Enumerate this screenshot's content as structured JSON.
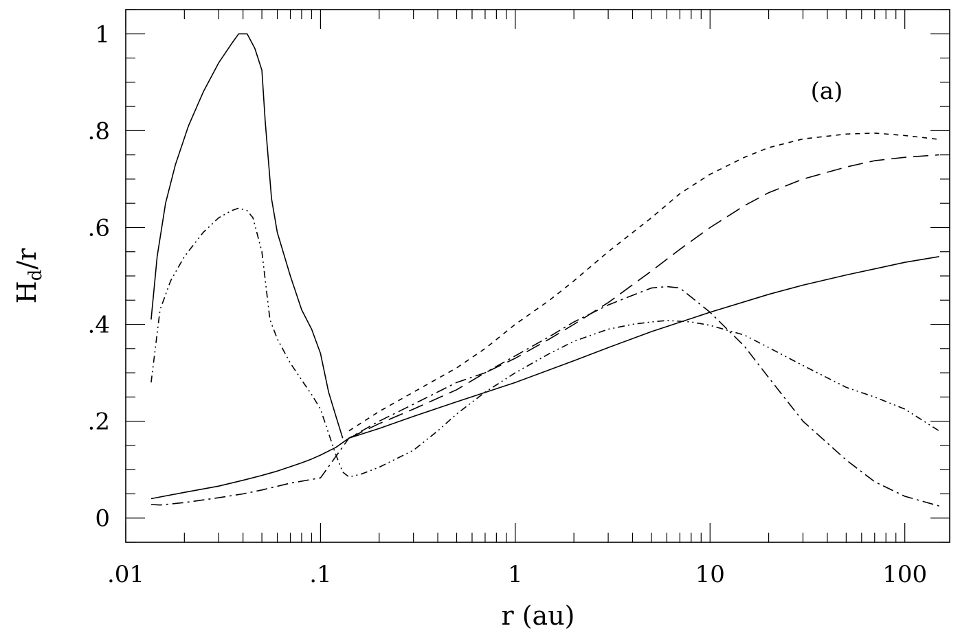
{
  "chart_data": {
    "type": "line",
    "title": "",
    "panel_label": "(a)",
    "xlabel": "r (au)",
    "ylabel_main": "H",
    "ylabel_sub": "d",
    "ylabel_tail": "/r",
    "xscale": "log",
    "xlim": [
      0.01,
      170
    ],
    "ylim": [
      -0.05,
      1.05
    ],
    "x_ticks": [
      {
        "value": 0.01,
        "label": ".01"
      },
      {
        "value": 0.1,
        "label": ".1"
      },
      {
        "value": 1,
        "label": "1"
      },
      {
        "value": 10,
        "label": "10"
      },
      {
        "value": 100,
        "label": "100"
      }
    ],
    "y_ticks": [
      {
        "value": 0,
        "label": "0"
      },
      {
        "value": 0.2,
        "label": ".2"
      },
      {
        "value": 0.4,
        "label": ".4"
      },
      {
        "value": 0.6,
        "label": ".6"
      },
      {
        "value": 0.8,
        "label": ".8"
      },
      {
        "value": 1.0,
        "label": "1"
      }
    ],
    "grid": false,
    "series": [
      {
        "style": "solid",
        "x": [
          0.0135,
          0.0145,
          0.016,
          0.018,
          0.021,
          0.025,
          0.03,
          0.035,
          0.038,
          0.042,
          0.046,
          0.05,
          0.052,
          0.056,
          0.06,
          0.07,
          0.08,
          0.09,
          0.1,
          0.11,
          0.12,
          0.13
        ],
        "y": [
          0.41,
          0.54,
          0.65,
          0.73,
          0.81,
          0.88,
          0.94,
          0.98,
          1.0,
          1.0,
          0.97,
          0.925,
          0.82,
          0.66,
          0.59,
          0.5,
          0.43,
          0.39,
          0.34,
          0.26,
          0.21,
          0.165
        ]
      },
      {
        "style": "solid",
        "x": [
          0.0135,
          0.02,
          0.03,
          0.04,
          0.05,
          0.06,
          0.07,
          0.08,
          0.09,
          0.1,
          0.12,
          0.14,
          0.2,
          0.3,
          0.5,
          1,
          2,
          3,
          5,
          10,
          20,
          30,
          50,
          100,
          150
        ],
        "y": [
          0.04,
          0.053,
          0.066,
          0.078,
          0.088,
          0.097,
          0.106,
          0.114,
          0.122,
          0.13,
          0.146,
          0.165,
          0.185,
          0.21,
          0.24,
          0.28,
          0.325,
          0.352,
          0.385,
          0.425,
          0.462,
          0.481,
          0.502,
          0.528,
          0.54
        ]
      },
      {
        "style": "dash-dot-dot",
        "x": [
          0.0135,
          0.015,
          0.017,
          0.02,
          0.025,
          0.03,
          0.035,
          0.038,
          0.042,
          0.045,
          0.05,
          0.055,
          0.06,
          0.07,
          0.08,
          0.09,
          0.1,
          0.11,
          0.12,
          0.13,
          0.14,
          0.16,
          0.2,
          0.3,
          0.4,
          0.5,
          0.7,
          1,
          1.5,
          2,
          3,
          4,
          5,
          6,
          8,
          10,
          15,
          20,
          30,
          50,
          70,
          100,
          150
        ],
        "y": [
          0.28,
          0.43,
          0.49,
          0.54,
          0.59,
          0.62,
          0.635,
          0.64,
          0.635,
          0.62,
          0.55,
          0.41,
          0.37,
          0.32,
          0.285,
          0.255,
          0.225,
          0.175,
          0.13,
          0.095,
          0.085,
          0.09,
          0.105,
          0.14,
          0.18,
          0.215,
          0.26,
          0.3,
          0.34,
          0.365,
          0.39,
          0.4,
          0.405,
          0.408,
          0.405,
          0.398,
          0.378,
          0.352,
          0.315,
          0.27,
          0.25,
          0.225,
          0.18
        ]
      },
      {
        "style": "dash-dot",
        "x": [
          0.0135,
          0.015,
          0.02,
          0.03,
          0.04,
          0.05,
          0.07,
          0.1,
          0.14,
          0.2,
          0.3,
          0.5,
          0.7,
          1,
          1.5,
          2,
          3,
          4,
          5,
          6,
          7,
          10,
          15,
          20,
          30,
          50,
          70,
          100,
          150
        ],
        "y": [
          0.028,
          0.027,
          0.032,
          0.042,
          0.05,
          0.058,
          0.072,
          0.083,
          0.165,
          0.2,
          0.235,
          0.28,
          0.3,
          0.335,
          0.375,
          0.405,
          0.44,
          0.46,
          0.475,
          0.478,
          0.475,
          0.425,
          0.355,
          0.29,
          0.2,
          0.12,
          0.075,
          0.045,
          0.025
        ]
      },
      {
        "style": "short-dash",
        "x": [
          0.14,
          0.2,
          0.3,
          0.5,
          0.7,
          1,
          1.5,
          2,
          3,
          5,
          7,
          10,
          15,
          20,
          30,
          50,
          70,
          100,
          150
        ],
        "y": [
          0.18,
          0.22,
          0.26,
          0.31,
          0.35,
          0.4,
          0.45,
          0.49,
          0.55,
          0.62,
          0.67,
          0.71,
          0.745,
          0.765,
          0.783,
          0.793,
          0.795,
          0.79,
          0.782
        ]
      },
      {
        "style": "long-dash",
        "x": [
          0.14,
          0.2,
          0.3,
          0.5,
          0.7,
          1,
          1.5,
          2,
          3,
          5,
          7,
          10,
          15,
          20,
          30,
          50,
          70,
          100,
          150
        ],
        "y": [
          0.165,
          0.195,
          0.225,
          0.265,
          0.3,
          0.33,
          0.37,
          0.4,
          0.445,
          0.51,
          0.555,
          0.6,
          0.645,
          0.672,
          0.7,
          0.725,
          0.738,
          0.745,
          0.75
        ]
      }
    ]
  }
}
